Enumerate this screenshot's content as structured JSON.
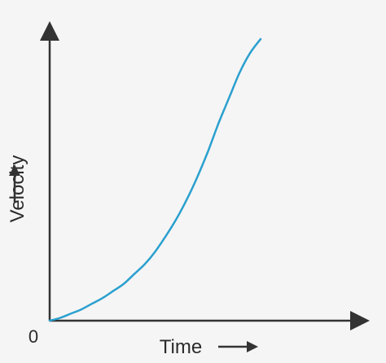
{
  "chart_data": {
    "type": "line",
    "title": "",
    "xlabel": "Time",
    "ylabel": "Velocity",
    "origin_label": "0",
    "grid": false,
    "legend": "none",
    "line_color": "#2aa0cf",
    "axis_color": "#333333",
    "shape": "exponential growth",
    "series": [
      {
        "x": [
          0,
          0.05,
          0.1,
          0.15,
          0.2,
          0.25,
          0.3,
          0.35,
          0.4,
          0.45,
          0.5,
          0.55,
          0.6,
          0.65,
          0.7,
          0.75,
          0.8,
          0.85,
          0.9,
          0.95,
          1.0
        ],
        "y": [
          0,
          0.01,
          0.025,
          0.04,
          0.06,
          0.08,
          0.105,
          0.13,
          0.165,
          0.2,
          0.245,
          0.3,
          0.36,
          0.43,
          0.51,
          0.6,
          0.7,
          0.79,
          0.88,
          0.95,
          1.0
        ]
      }
    ]
  }
}
